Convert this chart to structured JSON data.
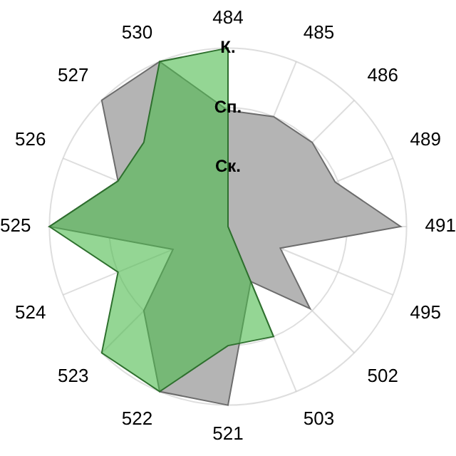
{
  "chart_data": {
    "type": "radar",
    "categories": [
      "484",
      "485",
      "486",
      "489",
      "491",
      "495",
      "502",
      "503",
      "521",
      "522",
      "523",
      "524",
      "525",
      "526",
      "527",
      "530"
    ],
    "series": [
      {
        "color": "#b4b4b4",
        "values": [
          1.95,
          2,
          2,
          1.95,
          2.9,
          0.95,
          1.95,
          1,
          3,
          3,
          2,
          1,
          3,
          2,
          3,
          3
        ]
      },
      {
        "color": "#4cbb4c",
        "values": [
          3,
          0,
          0,
          0,
          0,
          0,
          0,
          2,
          2,
          3,
          3,
          2,
          3,
          2,
          2,
          3
        ]
      }
    ],
    "ylim": [
      0,
      3
    ],
    "yticks": [
      {
        "value": 1,
        "label": "Ск."
      },
      {
        "value": 2,
        "label": "Сп."
      },
      {
        "value": 3,
        "label": "К."
      }
    ],
    "grid": true,
    "legend": false
  }
}
